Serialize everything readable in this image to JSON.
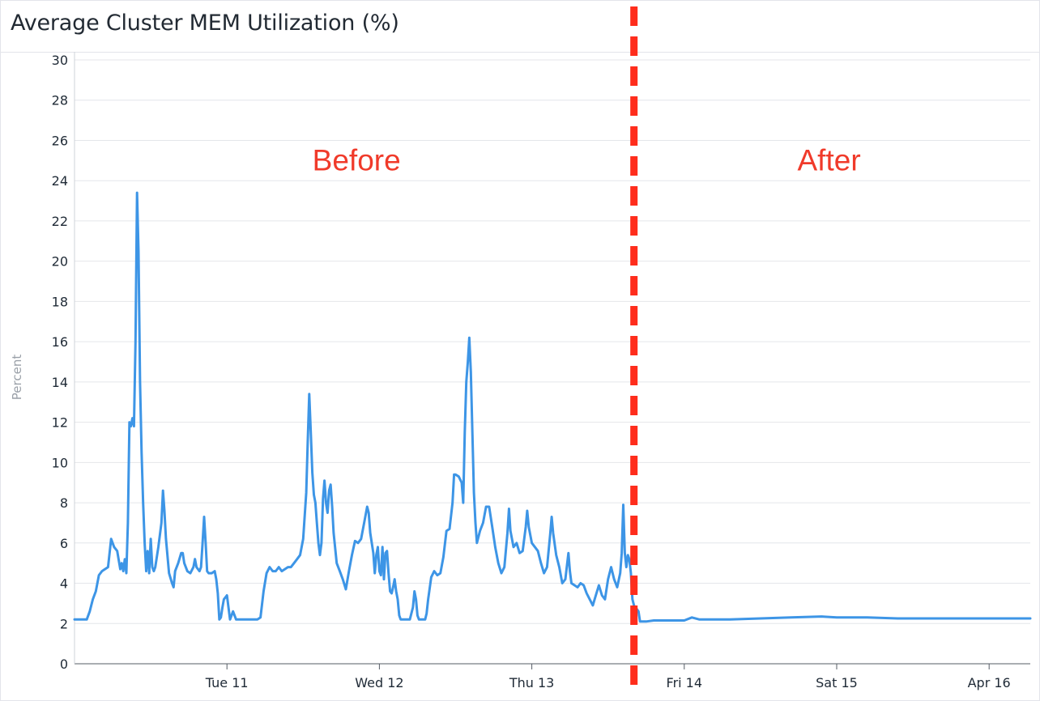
{
  "chart_data": {
    "type": "line",
    "title": "Average Cluster MEM Utilization (%)",
    "ylabel": "Percent",
    "xlabel": "",
    "ylim": [
      0,
      30
    ],
    "yticks": [
      0,
      2,
      4,
      6,
      8,
      10,
      12,
      14,
      16,
      18,
      20,
      22,
      24,
      26,
      28,
      30
    ],
    "xlim": [
      0.0,
      6.27
    ],
    "xticks": [
      {
        "label": "Tue 11",
        "x": 1.0
      },
      {
        "label": "Wed 12",
        "x": 2.0
      },
      {
        "label": "Thu 13",
        "x": 3.0
      },
      {
        "label": "Fri 14",
        "x": 4.0
      },
      {
        "label": "Sat 15",
        "x": 5.0
      },
      {
        "label": "Apr 16",
        "x": 6.0
      }
    ],
    "grid": true,
    "series": [
      {
        "color": "#3d95e6",
        "points": [
          [
            0.0,
            2.2
          ],
          [
            0.08,
            2.2
          ],
          [
            0.1,
            2.6
          ],
          [
            0.12,
            3.2
          ],
          [
            0.14,
            3.6
          ],
          [
            0.16,
            4.4
          ],
          [
            0.18,
            4.6
          ],
          [
            0.2,
            4.7
          ],
          [
            0.22,
            4.8
          ],
          [
            0.24,
            6.2
          ],
          [
            0.26,
            5.8
          ],
          [
            0.28,
            5.6
          ],
          [
            0.3,
            4.7
          ],
          [
            0.31,
            5.0
          ],
          [
            0.32,
            4.6
          ],
          [
            0.33,
            5.2
          ],
          [
            0.34,
            4.5
          ],
          [
            0.35,
            7.0
          ],
          [
            0.36,
            12.0
          ],
          [
            0.37,
            11.8
          ],
          [
            0.38,
            12.2
          ],
          [
            0.39,
            11.8
          ],
          [
            0.4,
            16.0
          ],
          [
            0.41,
            23.4
          ],
          [
            0.42,
            20.5
          ],
          [
            0.43,
            14.0
          ],
          [
            0.44,
            10.5
          ],
          [
            0.45,
            8.0
          ],
          [
            0.46,
            6.0
          ],
          [
            0.47,
            4.6
          ],
          [
            0.48,
            5.6
          ],
          [
            0.49,
            4.5
          ],
          [
            0.5,
            6.2
          ],
          [
            0.51,
            4.8
          ],
          [
            0.52,
            4.6
          ],
          [
            0.53,
            4.8
          ],
          [
            0.55,
            5.8
          ],
          [
            0.57,
            7.0
          ],
          [
            0.58,
            8.6
          ],
          [
            0.59,
            7.6
          ],
          [
            0.6,
            6.2
          ],
          [
            0.62,
            4.5
          ],
          [
            0.64,
            4.0
          ],
          [
            0.65,
            3.8
          ],
          [
            0.66,
            4.6
          ],
          [
            0.68,
            5.0
          ],
          [
            0.7,
            5.5
          ],
          [
            0.71,
            5.5
          ],
          [
            0.72,
            5.0
          ],
          [
            0.74,
            4.6
          ],
          [
            0.76,
            4.5
          ],
          [
            0.78,
            4.8
          ],
          [
            0.79,
            5.2
          ],
          [
            0.8,
            4.8
          ],
          [
            0.82,
            4.6
          ],
          [
            0.83,
            4.8
          ],
          [
            0.84,
            6.0
          ],
          [
            0.85,
            7.3
          ],
          [
            0.86,
            6.0
          ],
          [
            0.87,
            4.6
          ],
          [
            0.88,
            4.5
          ],
          [
            0.9,
            4.5
          ],
          [
            0.92,
            4.6
          ],
          [
            0.93,
            4.2
          ],
          [
            0.94,
            3.5
          ],
          [
            0.95,
            2.2
          ],
          [
            0.96,
            2.3
          ],
          [
            0.97,
            2.8
          ],
          [
            0.98,
            3.2
          ],
          [
            1.0,
            3.4
          ],
          [
            1.01,
            2.8
          ],
          [
            1.02,
            2.2
          ],
          [
            1.04,
            2.6
          ],
          [
            1.05,
            2.4
          ],
          [
            1.06,
            2.2
          ],
          [
            1.1,
            2.2
          ],
          [
            1.15,
            2.2
          ],
          [
            1.2,
            2.2
          ],
          [
            1.22,
            2.3
          ],
          [
            1.24,
            3.6
          ],
          [
            1.26,
            4.5
          ],
          [
            1.28,
            4.8
          ],
          [
            1.3,
            4.6
          ],
          [
            1.32,
            4.6
          ],
          [
            1.34,
            4.8
          ],
          [
            1.36,
            4.6
          ],
          [
            1.38,
            4.7
          ],
          [
            1.4,
            4.8
          ],
          [
            1.42,
            4.8
          ],
          [
            1.44,
            5.0
          ],
          [
            1.46,
            5.2
          ],
          [
            1.48,
            5.4
          ],
          [
            1.5,
            6.2
          ],
          [
            1.52,
            8.5
          ],
          [
            1.53,
            11.0
          ],
          [
            1.54,
            13.4
          ],
          [
            1.55,
            11.5
          ],
          [
            1.56,
            9.5
          ],
          [
            1.57,
            8.4
          ],
          [
            1.58,
            8.0
          ],
          [
            1.59,
            7.0
          ],
          [
            1.6,
            6.0
          ],
          [
            1.61,
            5.4
          ],
          [
            1.62,
            6.0
          ],
          [
            1.63,
            8.2
          ],
          [
            1.64,
            9.1
          ],
          [
            1.65,
            8.0
          ],
          [
            1.66,
            7.5
          ],
          [
            1.67,
            8.6
          ],
          [
            1.68,
            8.9
          ],
          [
            1.69,
            7.8
          ],
          [
            1.7,
            6.5
          ],
          [
            1.72,
            5.0
          ],
          [
            1.74,
            4.6
          ],
          [
            1.76,
            4.2
          ],
          [
            1.78,
            3.7
          ],
          [
            1.8,
            4.6
          ],
          [
            1.82,
            5.4
          ],
          [
            1.84,
            6.1
          ],
          [
            1.86,
            6.0
          ],
          [
            1.88,
            6.2
          ],
          [
            1.9,
            7.0
          ],
          [
            1.92,
            7.8
          ],
          [
            1.93,
            7.5
          ],
          [
            1.94,
            6.5
          ],
          [
            1.96,
            5.5
          ],
          [
            1.97,
            4.5
          ],
          [
            1.98,
            5.4
          ],
          [
            1.99,
            5.8
          ],
          [
            2.0,
            4.6
          ],
          [
            2.01,
            4.4
          ],
          [
            2.02,
            5.8
          ],
          [
            2.03,
            4.2
          ],
          [
            2.04,
            5.5
          ],
          [
            2.05,
            5.6
          ],
          [
            2.06,
            4.5
          ],
          [
            2.07,
            3.6
          ],
          [
            2.08,
            3.5
          ],
          [
            2.09,
            3.8
          ],
          [
            2.1,
            4.2
          ],
          [
            2.11,
            3.6
          ],
          [
            2.12,
            3.2
          ],
          [
            2.13,
            2.4
          ],
          [
            2.14,
            2.2
          ],
          [
            2.16,
            2.2
          ],
          [
            2.2,
            2.2
          ],
          [
            2.22,
            2.8
          ],
          [
            2.23,
            3.6
          ],
          [
            2.24,
            3.2
          ],
          [
            2.25,
            2.4
          ],
          [
            2.26,
            2.2
          ],
          [
            2.3,
            2.2
          ],
          [
            2.31,
            2.5
          ],
          [
            2.32,
            3.2
          ],
          [
            2.34,
            4.3
          ],
          [
            2.36,
            4.6
          ],
          [
            2.38,
            4.4
          ],
          [
            2.4,
            4.5
          ],
          [
            2.42,
            5.3
          ],
          [
            2.44,
            6.6
          ],
          [
            2.46,
            6.7
          ],
          [
            2.48,
            8.0
          ],
          [
            2.49,
            9.4
          ],
          [
            2.5,
            9.4
          ],
          [
            2.52,
            9.3
          ],
          [
            2.54,
            9.0
          ],
          [
            2.55,
            8.0
          ],
          [
            2.56,
            11.5
          ],
          [
            2.57,
            14.0
          ],
          [
            2.58,
            15.0
          ],
          [
            2.59,
            16.2
          ],
          [
            2.6,
            14.5
          ],
          [
            2.61,
            11.5
          ],
          [
            2.62,
            8.5
          ],
          [
            2.63,
            7.0
          ],
          [
            2.64,
            6.0
          ],
          [
            2.66,
            6.6
          ],
          [
            2.68,
            7.0
          ],
          [
            2.7,
            7.8
          ],
          [
            2.72,
            7.8
          ],
          [
            2.74,
            6.8
          ],
          [
            2.76,
            5.8
          ],
          [
            2.78,
            5.0
          ],
          [
            2.8,
            4.5
          ],
          [
            2.82,
            4.8
          ],
          [
            2.84,
            6.5
          ],
          [
            2.85,
            7.7
          ],
          [
            2.86,
            6.6
          ],
          [
            2.88,
            5.8
          ],
          [
            2.9,
            6.0
          ],
          [
            2.92,
            5.5
          ],
          [
            2.94,
            5.6
          ],
          [
            2.96,
            6.8
          ],
          [
            2.97,
            7.6
          ],
          [
            2.98,
            6.8
          ],
          [
            3.0,
            6.0
          ],
          [
            3.02,
            5.8
          ],
          [
            3.04,
            5.6
          ],
          [
            3.06,
            5.0
          ],
          [
            3.08,
            4.5
          ],
          [
            3.1,
            4.8
          ],
          [
            3.12,
            6.4
          ],
          [
            3.13,
            7.3
          ],
          [
            3.14,
            6.5
          ],
          [
            3.16,
            5.4
          ],
          [
            3.18,
            4.8
          ],
          [
            3.2,
            4.0
          ],
          [
            3.22,
            4.2
          ],
          [
            3.24,
            5.5
          ],
          [
            3.25,
            4.6
          ],
          [
            3.26,
            4.0
          ],
          [
            3.28,
            3.9
          ],
          [
            3.3,
            3.8
          ],
          [
            3.32,
            4.0
          ],
          [
            3.34,
            3.9
          ],
          [
            3.36,
            3.5
          ],
          [
            3.38,
            3.2
          ],
          [
            3.4,
            2.9
          ],
          [
            3.42,
            3.4
          ],
          [
            3.44,
            3.9
          ],
          [
            3.46,
            3.4
          ],
          [
            3.48,
            3.2
          ],
          [
            3.5,
            4.2
          ],
          [
            3.52,
            4.8
          ],
          [
            3.54,
            4.2
          ],
          [
            3.56,
            3.8
          ],
          [
            3.58,
            4.5
          ],
          [
            3.59,
            5.5
          ],
          [
            3.6,
            7.9
          ],
          [
            3.61,
            5.5
          ],
          [
            3.62,
            4.8
          ],
          [
            3.63,
            5.4
          ],
          [
            3.64,
            5.2
          ],
          [
            3.65,
            4.5
          ],
          [
            3.66,
            3.2
          ],
          [
            3.67,
            2.9
          ],
          [
            3.68,
            2.8
          ],
          [
            3.7,
            2.6
          ],
          [
            3.71,
            2.1
          ],
          [
            3.75,
            2.1
          ],
          [
            3.8,
            2.15
          ],
          [
            3.9,
            2.15
          ],
          [
            4.0,
            2.15
          ],
          [
            4.05,
            2.3
          ],
          [
            4.1,
            2.2
          ],
          [
            4.2,
            2.2
          ],
          [
            4.3,
            2.2
          ],
          [
            4.5,
            2.25
          ],
          [
            4.7,
            2.3
          ],
          [
            4.9,
            2.35
          ],
          [
            5.0,
            2.3
          ],
          [
            5.2,
            2.3
          ],
          [
            5.4,
            2.25
          ],
          [
            5.6,
            2.25
          ],
          [
            5.8,
            2.25
          ],
          [
            6.0,
            2.25
          ],
          [
            6.2,
            2.25
          ],
          [
            6.27,
            2.25
          ]
        ]
      }
    ],
    "annotations": [
      {
        "text": "Before",
        "x": 1.85,
        "y": 25.0
      },
      {
        "text": "After",
        "x": 4.95,
        "y": 25.0
      }
    ],
    "divider": {
      "x": 3.67,
      "color": "#ff2d1c",
      "style": "dashed"
    }
  }
}
